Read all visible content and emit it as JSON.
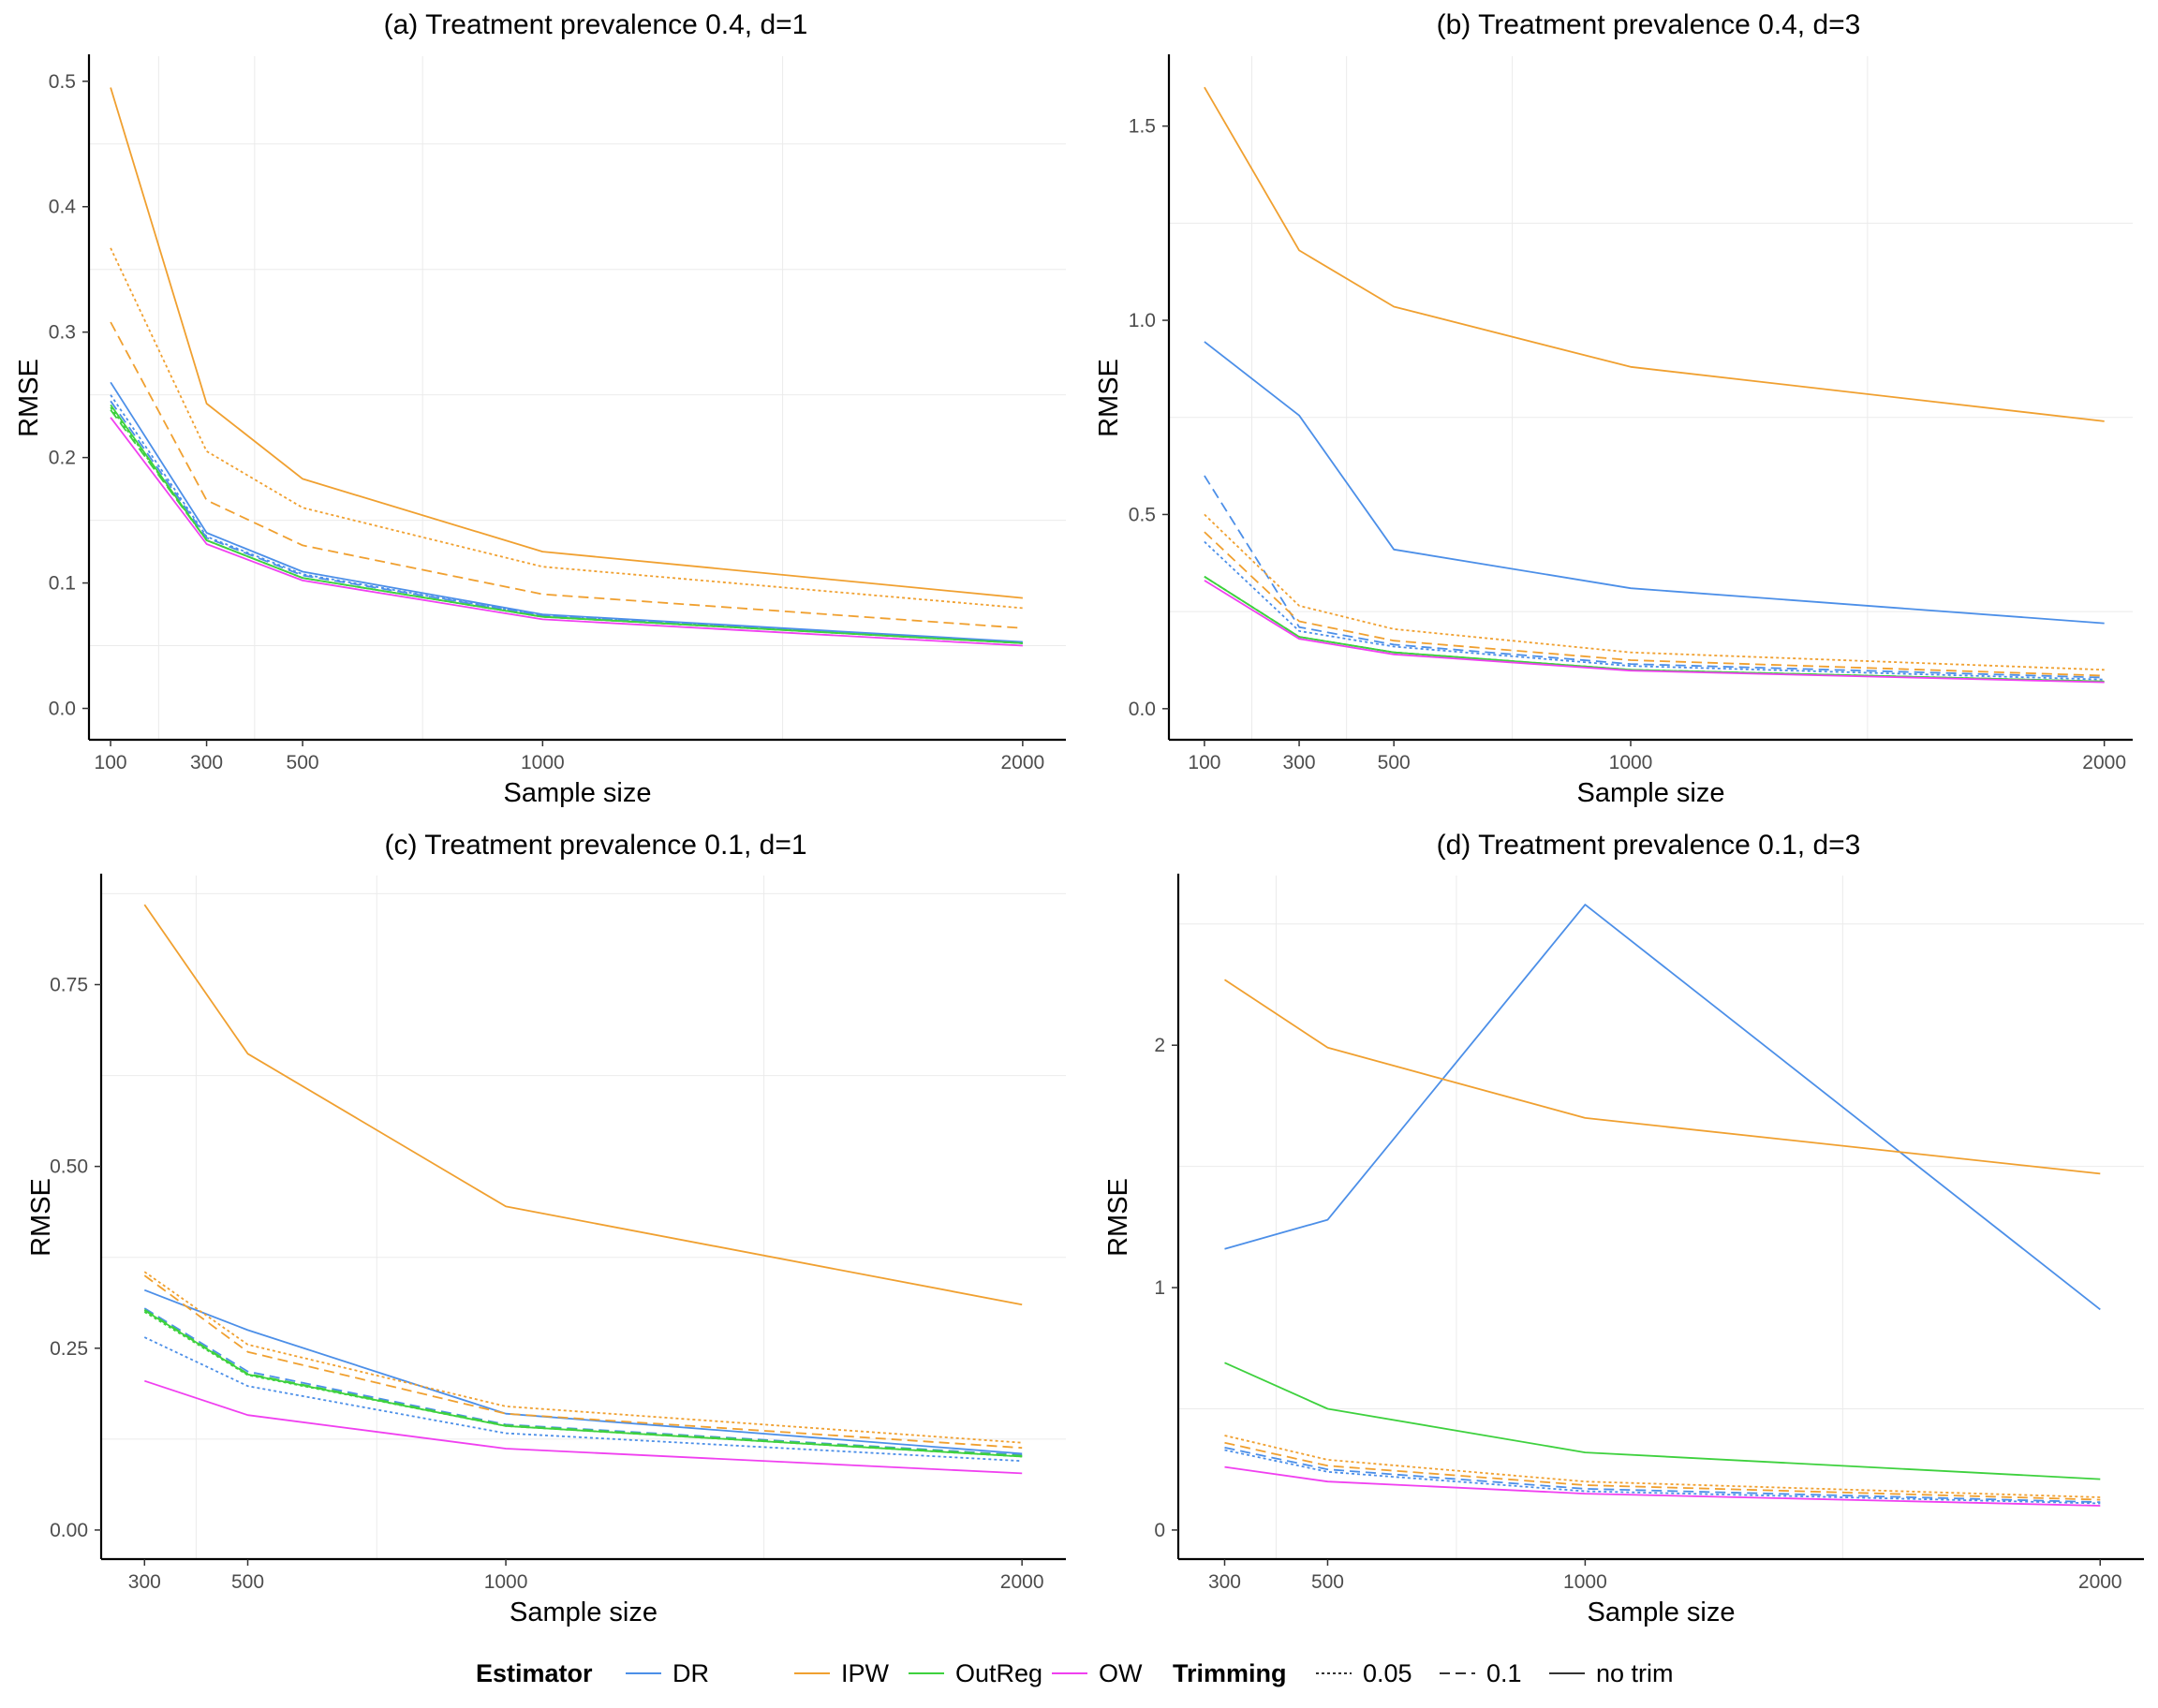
{
  "chart_data": [
    {
      "type": "line",
      "title": "(a) Treatment prevalence 0.4, d=1",
      "xlabel": "Sample size",
      "ylabel": "RMSE",
      "x": [
        100,
        300,
        500,
        1000,
        2000
      ],
      "xticks": [
        100,
        300,
        500,
        1000,
        2000
      ],
      "xlim": [
        55,
        2090
      ],
      "yticks": [
        0.0,
        0.1,
        0.2,
        0.3,
        0.4,
        0.5
      ],
      "ytick_labels": [
        "0.0",
        "0.1",
        "0.2",
        "0.3",
        "0.4",
        "0.5"
      ],
      "ylim": [
        -0.025,
        0.52
      ],
      "series": [
        {
          "estimator": "DR",
          "trim": "0.05",
          "values": [
            0.25,
            0.137,
            0.107,
            0.074,
            0.052
          ]
        },
        {
          "estimator": "DR",
          "trim": "0.1",
          "values": [
            0.245,
            0.136,
            0.106,
            0.074,
            0.052
          ]
        },
        {
          "estimator": "DR",
          "trim": "no trim",
          "values": [
            0.26,
            0.14,
            0.109,
            0.075,
            0.053
          ]
        },
        {
          "estimator": "IPW",
          "trim": "0.05",
          "values": [
            0.367,
            0.205,
            0.16,
            0.113,
            0.08
          ]
        },
        {
          "estimator": "IPW",
          "trim": "0.1",
          "values": [
            0.308,
            0.166,
            0.13,
            0.091,
            0.064
          ]
        },
        {
          "estimator": "IPW",
          "trim": "no trim",
          "values": [
            0.495,
            0.243,
            0.183,
            0.125,
            0.088
          ]
        },
        {
          "estimator": "OutReg",
          "trim": "0.05",
          "values": [
            0.24,
            0.134,
            0.104,
            0.073,
            0.052
          ]
        },
        {
          "estimator": "OutReg",
          "trim": "0.1",
          "values": [
            0.238,
            0.134,
            0.104,
            0.073,
            0.052
          ]
        },
        {
          "estimator": "OutReg",
          "trim": "no trim",
          "values": [
            0.242,
            0.134,
            0.104,
            0.073,
            0.052
          ]
        },
        {
          "estimator": "OW",
          "trim": "no trim",
          "values": [
            0.232,
            0.131,
            0.102,
            0.071,
            0.05
          ]
        }
      ]
    },
    {
      "type": "line",
      "title": "(b) Treatment prevalence 0.4, d=3",
      "xlabel": "Sample size",
      "ylabel": "RMSE",
      "x": [
        100,
        300,
        500,
        1000,
        2000
      ],
      "xticks": [
        100,
        300,
        500,
        1000,
        2000
      ],
      "xlim": [
        25,
        2060
      ],
      "yticks": [
        0.0,
        0.5,
        1.0,
        1.5
      ],
      "ytick_labels": [
        "0.0",
        "0.5",
        "1.0",
        "1.5"
      ],
      "ylim": [
        -0.08,
        1.68
      ],
      "series": [
        {
          "estimator": "DR",
          "trim": "0.05",
          "values": [
            0.43,
            0.2,
            0.16,
            0.11,
            0.075
          ]
        },
        {
          "estimator": "DR",
          "trim": "0.1",
          "values": [
            0.6,
            0.21,
            0.165,
            0.115,
            0.08
          ]
        },
        {
          "estimator": "DR",
          "trim": "no trim",
          "values": [
            0.945,
            0.755,
            0.41,
            0.31,
            0.22
          ]
        },
        {
          "estimator": "IPW",
          "trim": "0.05",
          "values": [
            0.5,
            0.265,
            0.205,
            0.145,
            0.1
          ]
        },
        {
          "estimator": "IPW",
          "trim": "0.1",
          "values": [
            0.455,
            0.225,
            0.175,
            0.125,
            0.085
          ]
        },
        {
          "estimator": "IPW",
          "trim": "no trim",
          "values": [
            1.6,
            1.18,
            1.035,
            0.88,
            0.74
          ]
        },
        {
          "estimator": "OutReg",
          "trim": "0.05",
          "values": [
            0.34,
            0.185,
            0.145,
            0.1,
            0.07
          ]
        },
        {
          "estimator": "OutReg",
          "trim": "0.1",
          "values": [
            0.34,
            0.185,
            0.145,
            0.1,
            0.07
          ]
        },
        {
          "estimator": "OutReg",
          "trim": "no trim",
          "values": [
            0.34,
            0.185,
            0.145,
            0.1,
            0.07
          ]
        },
        {
          "estimator": "OW",
          "trim": "no trim",
          "values": [
            0.33,
            0.18,
            0.14,
            0.098,
            0.068
          ]
        }
      ]
    },
    {
      "type": "line",
      "title": "(c) Treatment prevalence 0.1, d=1",
      "xlabel": "Sample size",
      "ylabel": "RMSE",
      "x": [
        300,
        500,
        1000,
        2000
      ],
      "xticks": [
        300,
        500,
        1000,
        2000
      ],
      "xlim": [
        216,
        2085
      ],
      "yticks": [
        0.0,
        0.25,
        0.5,
        0.75
      ],
      "ytick_labels": [
        "0.00",
        "0.25",
        "0.50",
        "0.75"
      ],
      "ylim": [
        -0.04,
        0.9
      ],
      "series": [
        {
          "estimator": "DR",
          "trim": "0.05",
          "values": [
            0.265,
            0.198,
            0.133,
            0.095
          ]
        },
        {
          "estimator": "DR",
          "trim": "0.1",
          "values": [
            0.305,
            0.218,
            0.145,
            0.103
          ]
        },
        {
          "estimator": "DR",
          "trim": "no trim",
          "values": [
            0.33,
            0.275,
            0.16,
            0.105
          ]
        },
        {
          "estimator": "IPW",
          "trim": "0.05",
          "values": [
            0.355,
            0.255,
            0.17,
            0.12
          ]
        },
        {
          "estimator": "IPW",
          "trim": "0.1",
          "values": [
            0.35,
            0.245,
            0.16,
            0.113
          ]
        },
        {
          "estimator": "IPW",
          "trim": "no trim",
          "values": [
            0.86,
            0.655,
            0.445,
            0.31
          ]
        },
        {
          "estimator": "OutReg",
          "trim": "0.05",
          "values": [
            0.3,
            0.213,
            0.143,
            0.101
          ]
        },
        {
          "estimator": "OutReg",
          "trim": "0.1",
          "values": [
            0.303,
            0.215,
            0.144,
            0.102
          ]
        },
        {
          "estimator": "OutReg",
          "trim": "no trim",
          "values": [
            0.302,
            0.214,
            0.143,
            0.101
          ]
        },
        {
          "estimator": "OW",
          "trim": "no trim",
          "values": [
            0.205,
            0.158,
            0.112,
            0.078
          ]
        }
      ]
    },
    {
      "type": "line",
      "title": "(d) Treatment prevalence 0.1, d=3",
      "xlabel": "Sample size",
      "ylabel": "RMSE",
      "x": [
        300,
        500,
        1000,
        2000
      ],
      "xticks": [
        300,
        500,
        1000,
        2000
      ],
      "xlim": [
        210,
        2085
      ],
      "yticks": [
        0,
        1,
        2
      ],
      "ytick_labels": [
        "0",
        "1",
        "2"
      ],
      "ylim": [
        -0.12,
        2.7
      ],
      "series": [
        {
          "estimator": "DR",
          "trim": "0.05",
          "values": [
            0.33,
            0.24,
            0.16,
            0.11
          ]
        },
        {
          "estimator": "DR",
          "trim": "0.1",
          "values": [
            0.34,
            0.25,
            0.17,
            0.115
          ]
        },
        {
          "estimator": "DR",
          "trim": "no trim",
          "values": [
            1.16,
            1.28,
            2.58,
            0.91
          ]
        },
        {
          "estimator": "IPW",
          "trim": "0.05",
          "values": [
            0.39,
            0.29,
            0.2,
            0.135
          ]
        },
        {
          "estimator": "IPW",
          "trim": "0.1",
          "values": [
            0.36,
            0.265,
            0.185,
            0.125
          ]
        },
        {
          "estimator": "IPW",
          "trim": "no trim",
          "values": [
            2.27,
            1.99,
            1.7,
            1.47
          ]
        },
        {
          "estimator": "OutReg",
          "trim": "no trim",
          "values": [
            0.69,
            0.5,
            0.32,
            0.21
          ]
        },
        {
          "estimator": "OW",
          "trim": "no trim",
          "values": [
            0.26,
            0.2,
            0.15,
            0.1
          ]
        }
      ]
    }
  ],
  "legend": {
    "estimator_title": "Estimator",
    "estimators": [
      {
        "name": "DR",
        "color": "#4c8fe8"
      },
      {
        "name": "IPW",
        "color": "#f0a030"
      },
      {
        "name": "OutReg",
        "color": "#3ed13e"
      },
      {
        "name": "OW",
        "color": "#f040f0"
      }
    ],
    "trimming_title": "Trimming",
    "trims": [
      {
        "name": "0.05",
        "dash": "3,3"
      },
      {
        "name": "0.1",
        "dash": "11,6"
      },
      {
        "name": "no trim",
        "dash": "none"
      }
    ],
    "placement": "bottom"
  }
}
